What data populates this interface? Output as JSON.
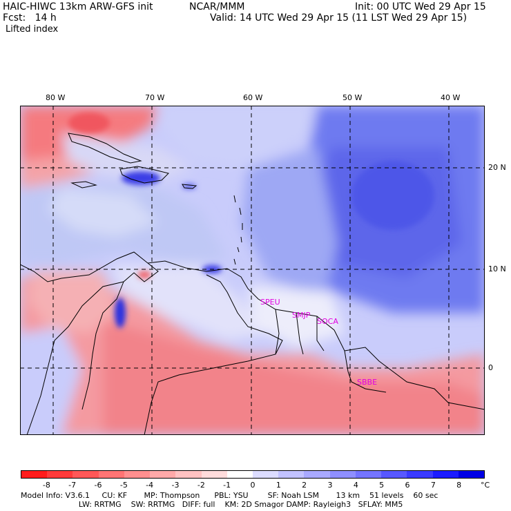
{
  "header": {
    "model": "HAIC-HIWC 13km ARW-GFS init",
    "center": "NCAR/MMM",
    "init": "Init: 00 UTC Wed 29 Apr 15",
    "fcst": "Fcst:   14 h",
    "valid": "Valid: 14 UTC Wed 29 Apr 15 (11 LST Wed 29 Apr 15)",
    "field": "Lifted index"
  },
  "map": {
    "lon_labels": [
      "80 W",
      "70 W",
      "60 W",
      "50 W",
      "40 W"
    ],
    "lat_labels": [
      "20 N",
      "10 N",
      "0"
    ],
    "stations": [
      "SPEU",
      "SMJP",
      "SOCA",
      "SBBE"
    ],
    "colors": {
      "station": "#e000e0",
      "grid": "#000000"
    }
  },
  "colorbar": {
    "labels": [
      "-8",
      "-7",
      "-6",
      "-5",
      "-4",
      "-3",
      "-2",
      "-1",
      "0",
      "1",
      "2",
      "3",
      "4",
      "5",
      "6",
      "7",
      "8"
    ],
    "unit": "°C",
    "colors": [
      "#ff1c1c",
      "#ff3b3b",
      "#ff5858",
      "#ff7474",
      "#ff8f8f",
      "#ffa9a9",
      "#ffc2c2",
      "#ffdcdc",
      "#ffffff",
      "#dcdcff",
      "#c2c2ff",
      "#a9a9ff",
      "#8f8fff",
      "#7474ff",
      "#5858ff",
      "#3b3bff",
      "#1c1cff",
      "#0000e6"
    ]
  },
  "footer": {
    "line1": "Model Info: V3.6.1     CU: KF       MP: Thompson      PBL: YSU        SF: Noah LSM       13 km    51 levels    60 sec",
    "line2": "                        LW: RRTMG    SW: RRTMG   DIFF: full    KM: 2D Smagor DAMP: Rayleigh3   SFLAY: MM5"
  }
}
